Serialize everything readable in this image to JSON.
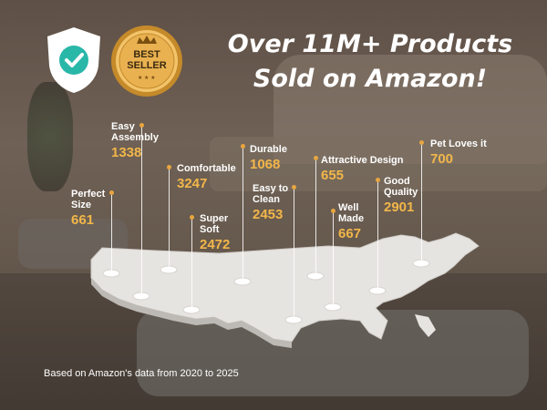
{
  "headline": {
    "line1": "Over 11M+ Products",
    "line2": "Sold on Amazon!"
  },
  "badges": {
    "shield_icon": "shield-check-icon",
    "seal": {
      "line1": "BEST",
      "line2": "SELLER"
    }
  },
  "features": [
    {
      "label_lines": [
        "Easy",
        "Assembly"
      ],
      "value": "1338"
    },
    {
      "label_lines": [
        "Comfortable"
      ],
      "value": "3247"
    },
    {
      "label_lines": [
        "Perfect",
        "Size"
      ],
      "value": "661"
    },
    {
      "label_lines": [
        "Super",
        "Soft"
      ],
      "value": "2472"
    },
    {
      "label_lines": [
        "Durable"
      ],
      "value": "1068"
    },
    {
      "label_lines": [
        "Easy to",
        "Clean"
      ],
      "value": "2453"
    },
    {
      "label_lines": [
        "Attractive Design"
      ],
      "value": "655"
    },
    {
      "label_lines": [
        "Well",
        "Made"
      ],
      "value": "667"
    },
    {
      "label_lines": [
        "Good",
        "Quality"
      ],
      "value": "2901"
    },
    {
      "label_lines": [
        "Pet Loves it"
      ],
      "value": "700"
    }
  ],
  "colors": {
    "accent_gold": "#f2b64a",
    "map_fill": "#e6e4e1",
    "shield": "#ffffff",
    "check": "#29b7a8"
  },
  "footnote": "Based on Amazon's data from 2020 to 2025"
}
